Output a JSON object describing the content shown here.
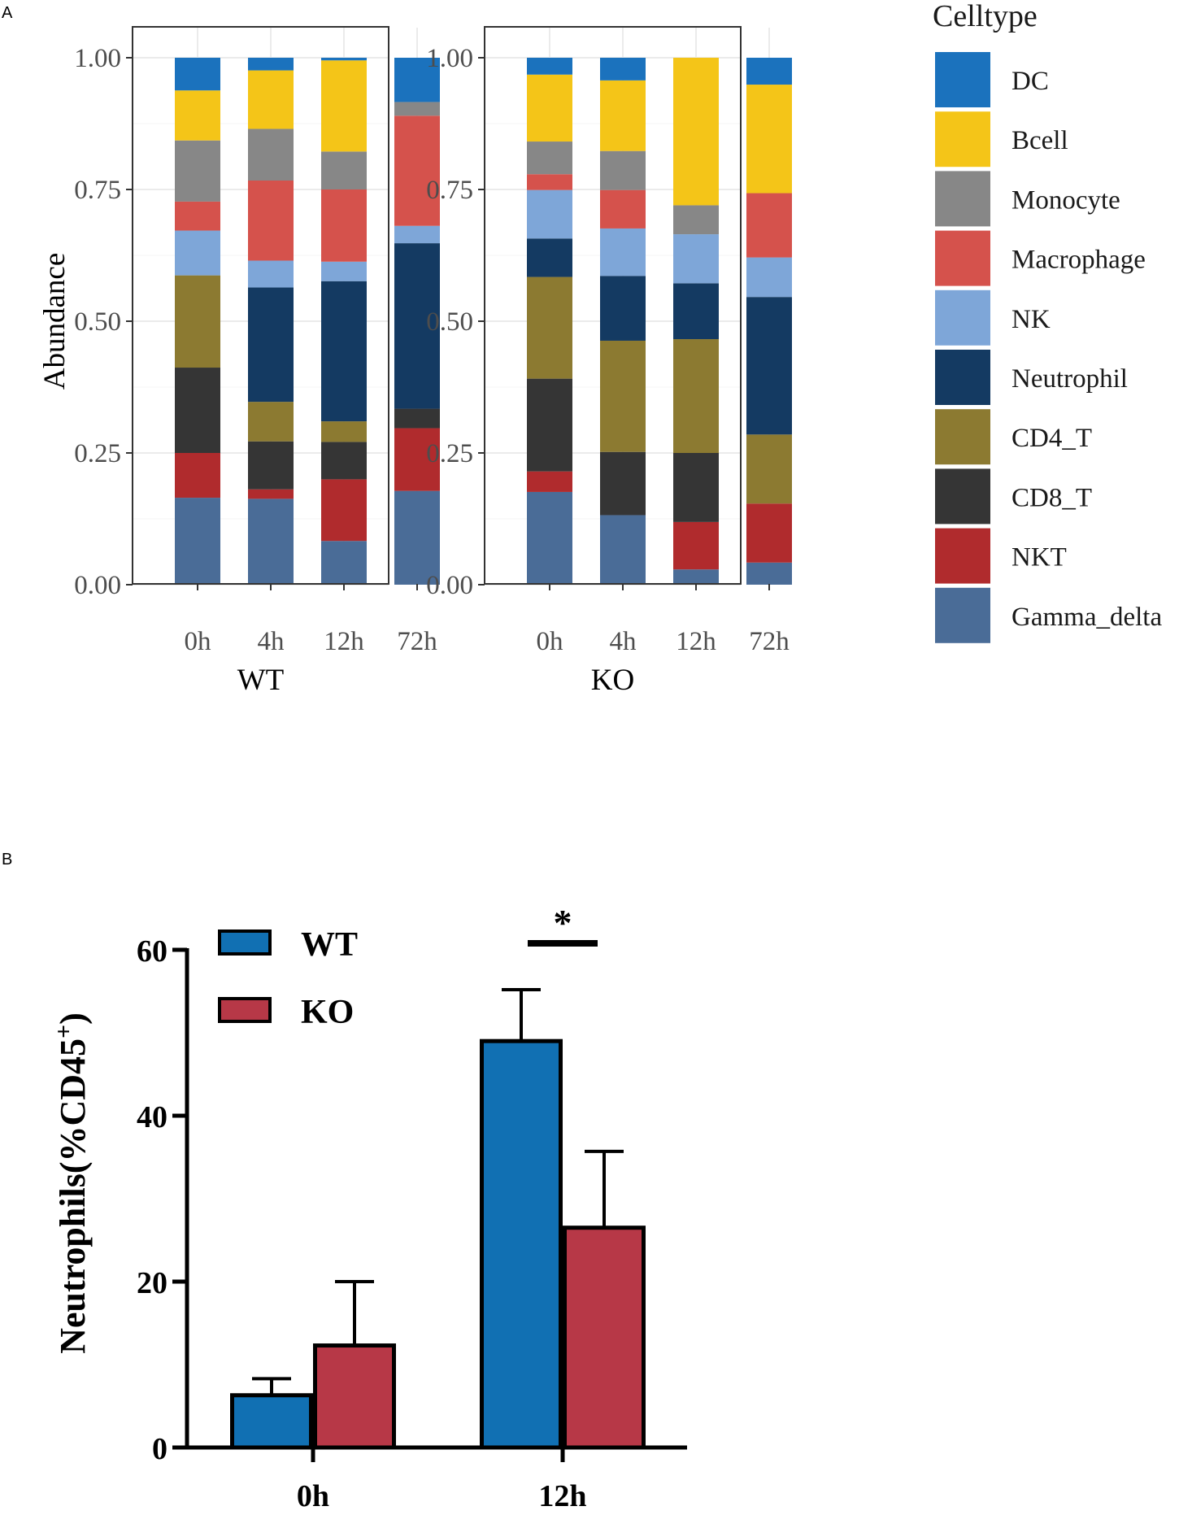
{
  "panel_labels": {
    "a": "A",
    "b": "B"
  },
  "colors": {
    "DC": "#1b72bd",
    "Bcell": "#f4c518",
    "Monocyte": "#878787",
    "Macrophage": "#d5524c",
    "NK": "#7ea6d8",
    "Neutrophil": "#143a62",
    "CD4_T": "#8c7a31",
    "CD8_T": "#353535",
    "NKT": "#b02b2d",
    "Gamma_delta": "#4a6c97",
    "WT_bar": "#1170b3",
    "KO_bar": "#b73847"
  },
  "chart_data": [
    {
      "type": "bar",
      "stacked": true,
      "ylabel": "Abundance",
      "ylim": [
        0,
        1
      ],
      "yticks": [
        "0.00",
        "0.25",
        "0.50",
        "0.75",
        "1.00"
      ],
      "categories": [
        "0h",
        "4h",
        "12h",
        "72h"
      ],
      "facets": [
        "WT",
        "KO"
      ],
      "legend": {
        "title": "Celltype",
        "entries": [
          "DC",
          "Bcell",
          "Monocyte",
          "Macrophage",
          "NK",
          "Neutrophil",
          "CD4_T",
          "CD8_T",
          "NKT",
          "Gamma_delta"
        ]
      },
      "stack_order_bottom_to_top": [
        "Gamma_delta",
        "NKT",
        "CD8_T",
        "CD4_T",
        "Neutrophil",
        "NK",
        "Macrophage",
        "Monocyte",
        "Bcell",
        "DC"
      ],
      "series": {
        "WT": {
          "Gamma_delta": [
            0.165,
            0.163,
            0.083,
            0.178
          ],
          "NKT": [
            0.085,
            0.018,
            0.117,
            0.119
          ],
          "CD8_T": [
            0.162,
            0.091,
            0.071,
            0.037
          ],
          "CD4_T": [
            0.175,
            0.075,
            0.039,
            0.0
          ],
          "Neutrophil": [
            0.0,
            0.217,
            0.266,
            0.314
          ],
          "NK": [
            0.085,
            0.051,
            0.037,
            0.033
          ],
          "Macrophage": [
            0.055,
            0.152,
            0.137,
            0.209
          ],
          "Monocyte": [
            0.116,
            0.098,
            0.072,
            0.026
          ],
          "Bcell": [
            0.095,
            0.111,
            0.173,
            0.0
          ],
          "DC": [
            0.062,
            0.024,
            0.005,
            0.084
          ]
        },
        "KO": {
          "Gamma_delta": [
            0.176,
            0.132,
            0.029,
            0.042
          ],
          "NKT": [
            0.039,
            0.0,
            0.09,
            0.112
          ],
          "CD8_T": [
            0.176,
            0.12,
            0.131,
            0.0
          ],
          "CD4_T": [
            0.193,
            0.211,
            0.216,
            0.131
          ],
          "Neutrophil": [
            0.073,
            0.123,
            0.106,
            0.261
          ],
          "NK": [
            0.092,
            0.09,
            0.093,
            0.075
          ],
          "Macrophage": [
            0.03,
            0.073,
            0.0,
            0.122
          ],
          "Monocyte": [
            0.062,
            0.074,
            0.055,
            0.0
          ],
          "Bcell": [
            0.127,
            0.134,
            0.28,
            0.206
          ],
          "DC": [
            0.032,
            0.043,
            0.0,
            0.051
          ]
        }
      }
    },
    {
      "type": "bar",
      "ylabel": "Neutrophils(%CD45",
      "ylabel_superscript": "+",
      "ylabel_close": ")",
      "ylim": [
        0,
        60
      ],
      "yticks": [
        "0",
        "20",
        "40",
        "60"
      ],
      "categories": [
        "0h",
        "12h"
      ],
      "series": [
        {
          "name": "WT",
          "values": [
            6.3,
            49.0
          ],
          "errors": [
            2.0,
            6.2
          ]
        },
        {
          "name": "KO",
          "values": [
            12.3,
            26.5
          ],
          "errors": [
            7.7,
            9.2
          ]
        }
      ],
      "significance": [
        {
          "category": "12h",
          "label": "*"
        }
      ]
    }
  ]
}
